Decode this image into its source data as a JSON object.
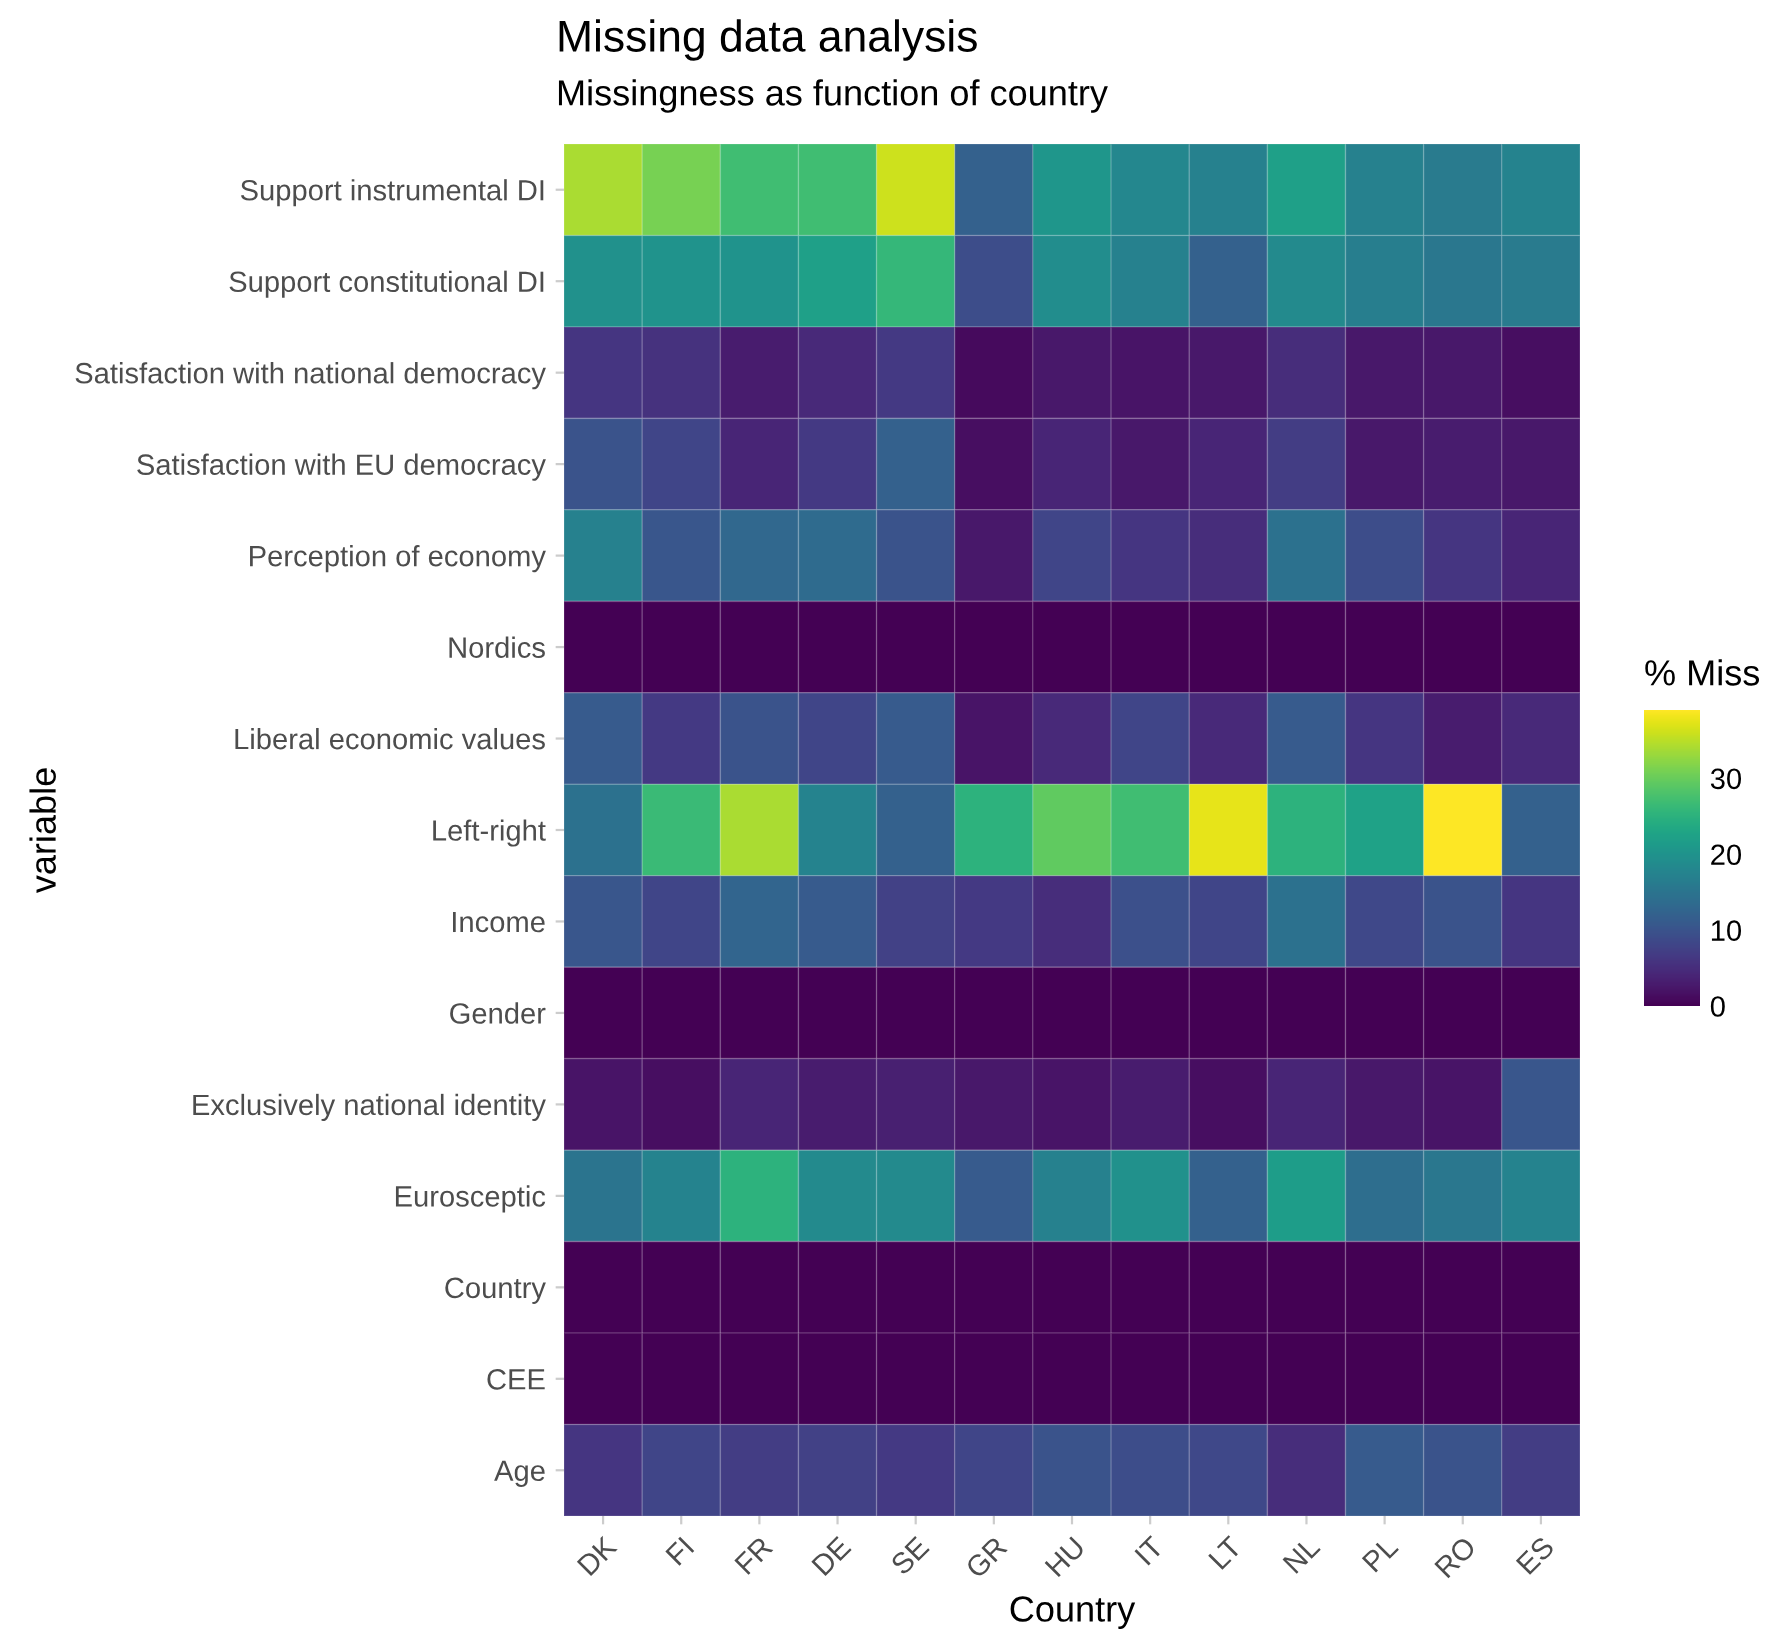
{
  "chart_data": {
    "type": "heatmap",
    "title": "Missing data analysis",
    "subtitle": "Missingness as function of country",
    "xlabel": "Country",
    "ylabel": "variable",
    "clabel": "% Miss",
    "categories": [
      "DK",
      "FI",
      "FR",
      "DE",
      "SE",
      "GR",
      "HU",
      "IT",
      "LT",
      "NL",
      "PL",
      "RO",
      "ES"
    ],
    "y_categories": [
      "Support instrumental DI",
      "Support constitutional DI",
      "Satisfaction with national democracy",
      "Satisfaction with EU democracy",
      "Perception of economy",
      "Nordics",
      "Liberal economic values",
      "Left-right",
      "Income",
      "Gender",
      "Exclusively national identity",
      "Eurosceptic",
      "Country",
      "CEE",
      "Age"
    ],
    "cells": [
      [
        34,
        31,
        27,
        27,
        36,
        12,
        20.5,
        18,
        17,
        22,
        17,
        16,
        17.5
      ],
      [
        19.5,
        20,
        20,
        22,
        26,
        9,
        19,
        17,
        12,
        18.5,
        16.5,
        15.5,
        16
      ],
      [
        6,
        5.5,
        3,
        4.5,
        6.5,
        1,
        2.5,
        2,
        2.5,
        5,
        2.5,
        2.5,
        1.5
      ],
      [
        10,
        8,
        4,
        6.5,
        12,
        1.5,
        4,
        2.5,
        4,
        7,
        2.5,
        3,
        2.5
      ],
      [
        17,
        10.5,
        13,
        13.5,
        10,
        2.5,
        8,
        6,
        5,
        14.5,
        9,
        6,
        4
      ],
      [
        0,
        0,
        0,
        0,
        0,
        0,
        0,
        0,
        0,
        0,
        0,
        0,
        0
      ],
      [
        11,
        6.5,
        10,
        8,
        11,
        2,
        4.5,
        8,
        4.5,
        11,
        6,
        3,
        4.5
      ],
      [
        14.5,
        26.5,
        34,
        17.5,
        12,
        25,
        29.5,
        27,
        37.5,
        25,
        22.5,
        39,
        12
      ],
      [
        10.5,
        8,
        12.5,
        11,
        7.5,
        6.5,
        5,
        9.5,
        8,
        14.5,
        8.5,
        10,
        6
      ],
      [
        0,
        0,
        0,
        0,
        0,
        0,
        0,
        0,
        0,
        0,
        0,
        0,
        0
      ],
      [
        2,
        1.5,
        4,
        3,
        3.5,
        2.5,
        2,
        3,
        1.5,
        4,
        2.5,
        2,
        10.5
      ],
      [
        15,
        17.5,
        25,
        18.5,
        18.5,
        11,
        17,
        19.5,
        12,
        21.5,
        14,
        15.5,
        17.5
      ],
      [
        0,
        0,
        0,
        0,
        0,
        0,
        0,
        0,
        0,
        0,
        0,
        0,
        0
      ],
      [
        0,
        0,
        0,
        0,
        0,
        0,
        0,
        0,
        0,
        0,
        0,
        0,
        0
      ],
      [
        6,
        8,
        7,
        7.5,
        6.5,
        8,
        10,
        9,
        8.5,
        5,
        11,
        10,
        7
      ]
    ],
    "clim": [
      0,
      39
    ],
    "cticks": [
      0,
      10,
      20,
      30
    ]
  }
}
